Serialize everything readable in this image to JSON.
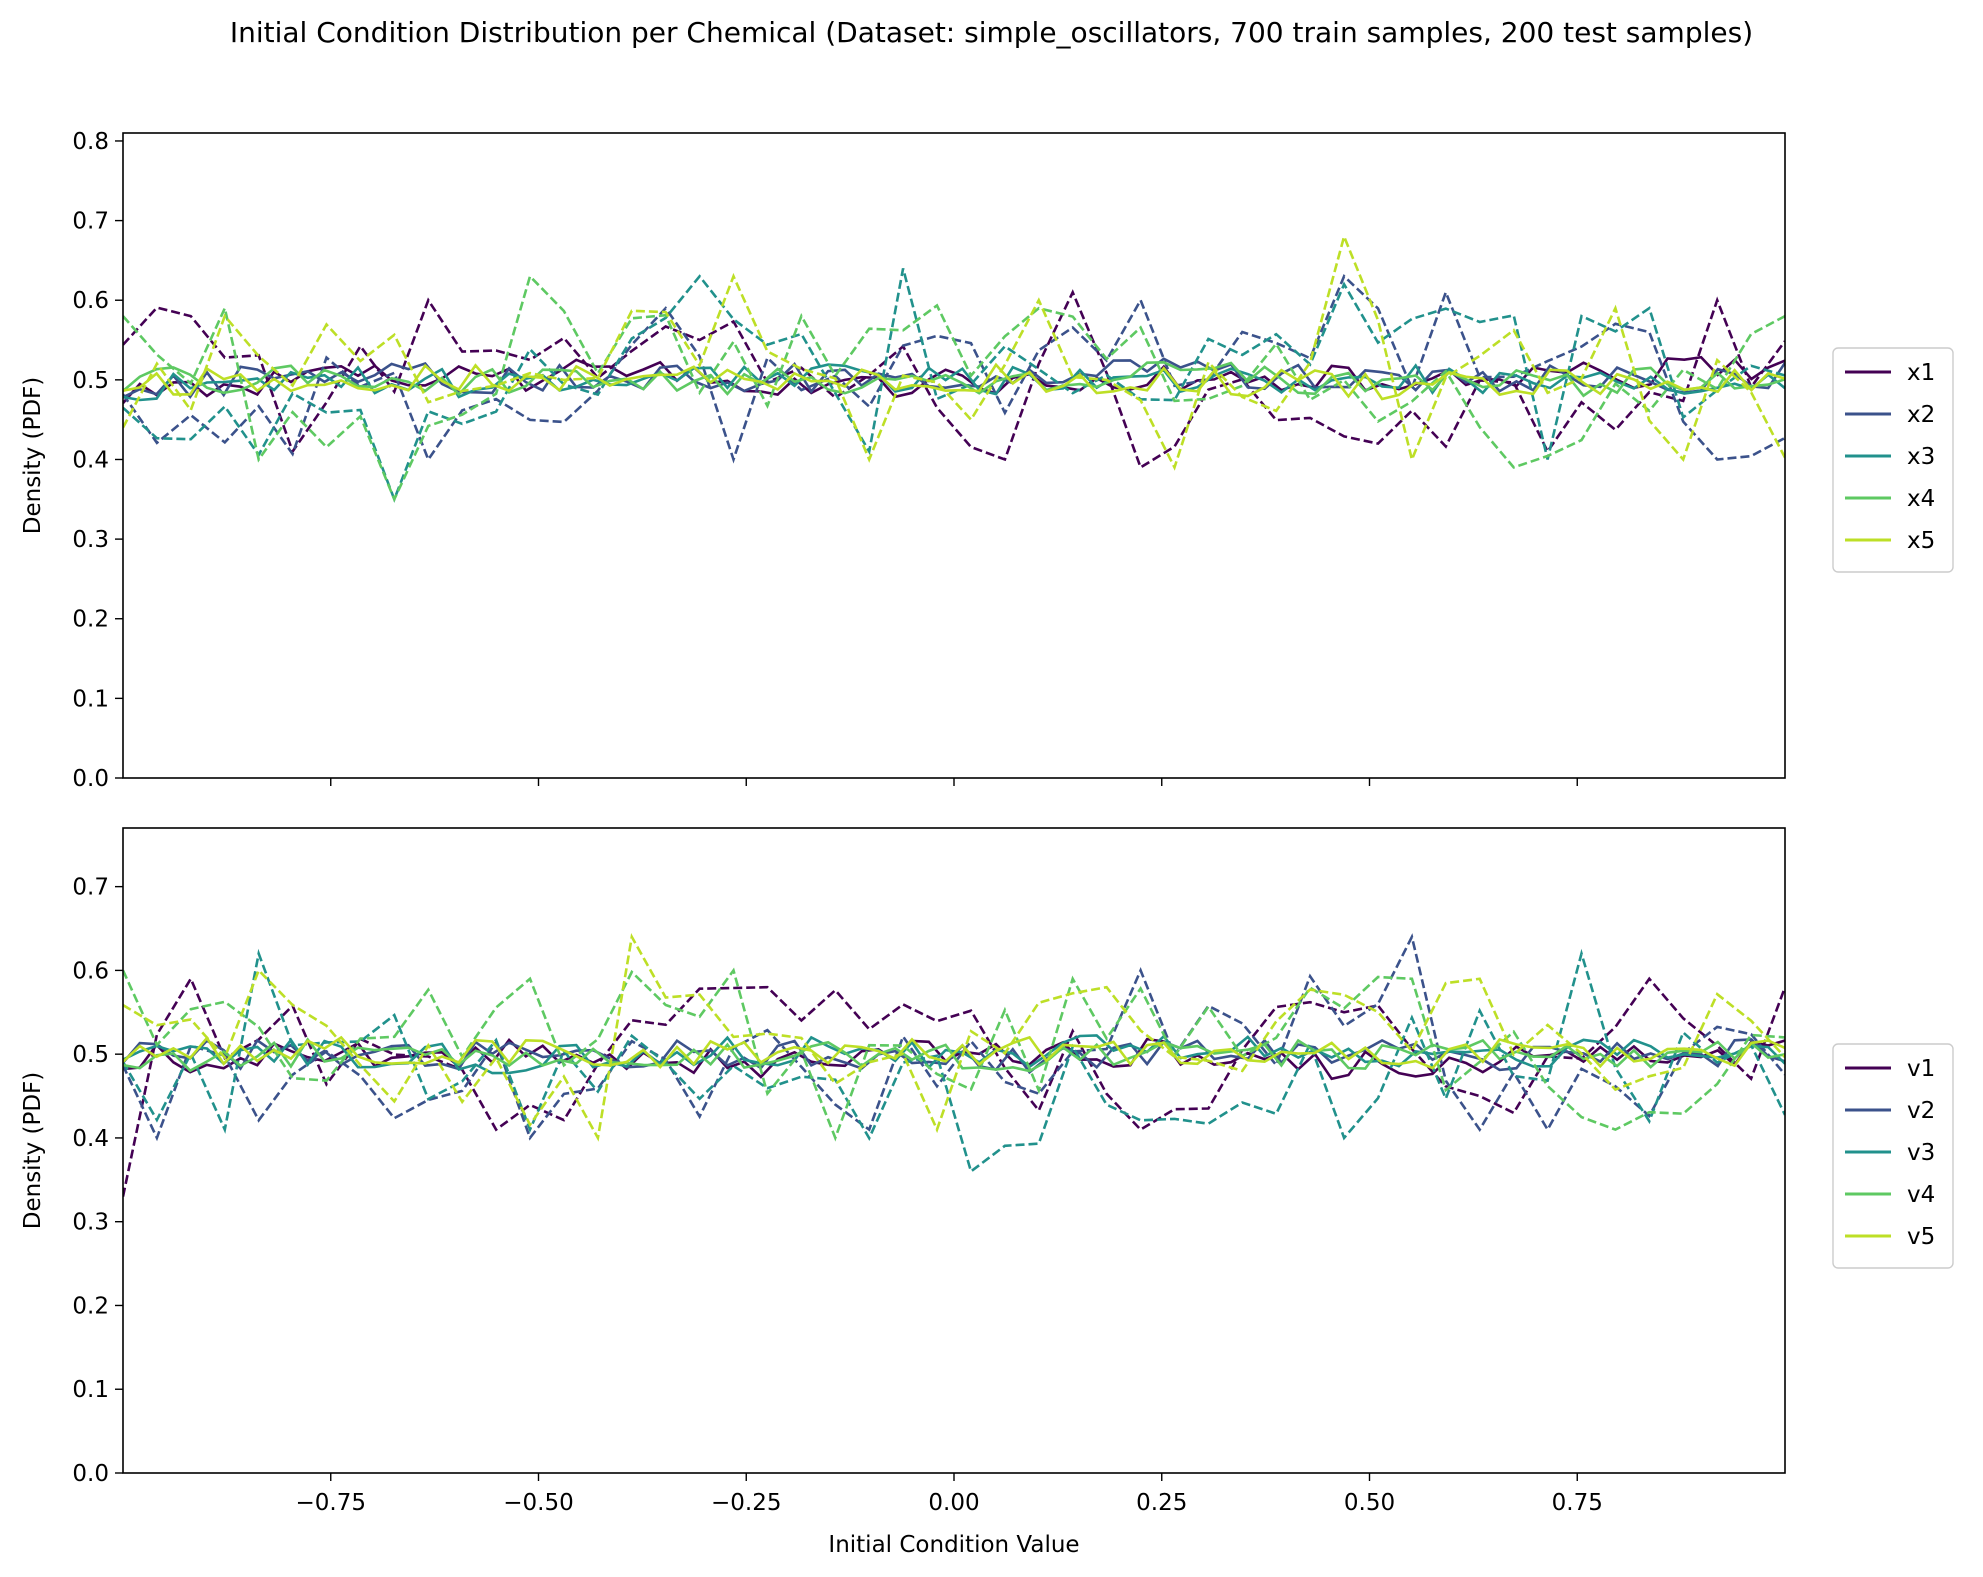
{
  "figure": {
    "title": "Initial Condition Distribution per Chemical (Dataset: simple_oscillators, 700 train samples, 200 test samples)"
  },
  "chart_data": [
    {
      "type": "line",
      "title": "",
      "xlabel": "",
      "ylabel": "Density (PDF)",
      "xlim": [
        -1.0,
        1.0
      ],
      "ylim": [
        0.0,
        0.81
      ],
      "yticks": [
        0.0,
        0.1,
        0.2,
        0.3,
        0.4,
        0.5,
        0.6,
        0.7,
        0.8
      ],
      "xticks": [
        -0.75,
        -0.5,
        -0.25,
        0.0,
        0.25,
        0.5,
        0.75
      ],
      "show_xticklabels": false,
      "grid": false,
      "legend_position": "right",
      "line_styles": {
        "train": "solid",
        "test": "dashed"
      },
      "series": [
        {
          "name": "x1",
          "color": "#440154",
          "train_anchors": [
            [
              -1.0,
              0.45
            ],
            [
              -0.8,
              0.5
            ],
            [
              -0.6,
              0.5
            ],
            [
              -0.4,
              0.53
            ],
            [
              -0.2,
              0.48
            ],
            [
              0.0,
              0.49
            ],
            [
              0.2,
              0.5
            ],
            [
              0.4,
              0.5
            ],
            [
              0.6,
              0.5
            ],
            [
              0.8,
              0.52
            ],
            [
              1.0,
              0.54
            ]
          ],
          "test_anchors": [
            [
              -0.93,
              0.58
            ],
            [
              -0.8,
              0.41
            ],
            [
              -0.64,
              0.6
            ],
            [
              -0.3,
              0.55
            ],
            [
              0.06,
              0.4
            ],
            [
              0.16,
              0.61
            ],
            [
              0.24,
              0.39
            ],
            [
              0.52,
              0.42
            ],
            [
              0.7,
              0.41
            ],
            [
              0.9,
              0.6
            ]
          ]
        },
        {
          "name": "x2",
          "color": "#3b528b",
          "train_anchors": [
            [
              -1.0,
              0.47
            ],
            [
              -0.75,
              0.52
            ],
            [
              -0.5,
              0.5
            ],
            [
              -0.25,
              0.51
            ],
            [
              0.0,
              0.5
            ],
            [
              0.25,
              0.53
            ],
            [
              0.5,
              0.5
            ],
            [
              0.75,
              0.5
            ],
            [
              1.0,
              0.51
            ]
          ],
          "test_anchors": [
            [
              -0.62,
              0.4
            ],
            [
              -0.35,
              0.59
            ],
            [
              -0.25,
              0.4
            ],
            [
              0.23,
              0.6
            ],
            [
              0.46,
              0.63
            ],
            [
              0.6,
              0.61
            ],
            [
              0.82,
              0.56
            ],
            [
              0.9,
              0.4
            ]
          ]
        },
        {
          "name": "x3",
          "color": "#21918c",
          "train_anchors": [
            [
              -1.0,
              0.47
            ],
            [
              -0.75,
              0.51
            ],
            [
              -0.5,
              0.47
            ],
            [
              -0.25,
              0.51
            ],
            [
              0.0,
              0.5
            ],
            [
              0.25,
              0.49
            ],
            [
              0.5,
              0.51
            ],
            [
              0.75,
              0.49
            ],
            [
              1.0,
              0.5
            ]
          ],
          "test_anchors": [
            [
              -0.67,
              0.35
            ],
            [
              -0.3,
              0.63
            ],
            [
              -0.05,
              0.64
            ],
            [
              -0.12,
              0.41
            ],
            [
              0.47,
              0.62
            ],
            [
              0.84,
              0.59
            ],
            [
              0.7,
              0.4
            ]
          ]
        },
        {
          "name": "x4",
          "color": "#5ec962",
          "train_anchors": [
            [
              -1.0,
              0.49
            ],
            [
              -0.8,
              0.51
            ],
            [
              -0.7,
              0.47
            ],
            [
              -0.5,
              0.51
            ],
            [
              -0.25,
              0.5
            ],
            [
              0.0,
              0.49
            ],
            [
              0.25,
              0.52
            ],
            [
              0.5,
              0.49
            ],
            [
              0.75,
              0.49
            ],
            [
              1.0,
              0.51
            ]
          ],
          "test_anchors": [
            [
              -1.0,
              0.58
            ],
            [
              -0.88,
              0.59
            ],
            [
              -0.84,
              0.4
            ],
            [
              -0.68,
              0.35
            ],
            [
              -0.49,
              0.63
            ],
            [
              -0.17,
              0.58
            ],
            [
              0.12,
              0.59
            ],
            [
              0.68,
              0.39
            ],
            [
              0.99,
              0.58
            ]
          ]
        },
        {
          "name": "x5",
          "color": "#bddf26",
          "train_anchors": [
            [
              -1.0,
              0.49
            ],
            [
              -0.75,
              0.51
            ],
            [
              -0.5,
              0.5
            ],
            [
              -0.25,
              0.5
            ],
            [
              0.0,
              0.51
            ],
            [
              0.25,
              0.5
            ],
            [
              0.5,
              0.48
            ],
            [
              0.75,
              0.5
            ],
            [
              1.0,
              0.49
            ]
          ],
          "test_anchors": [
            [
              -1.0,
              0.44
            ],
            [
              -0.87,
              0.58
            ],
            [
              -0.25,
              0.63
            ],
            [
              -0.11,
              0.4
            ],
            [
              0.1,
              0.6
            ],
            [
              0.25,
              0.39
            ],
            [
              0.48,
              0.68
            ],
            [
              0.55,
              0.4
            ],
            [
              0.78,
              0.59
            ],
            [
              0.86,
              0.4
            ]
          ]
        }
      ]
    },
    {
      "type": "line",
      "title": "",
      "xlabel": "Initial Condition Value",
      "ylabel": "Density (PDF)",
      "xlim": [
        -1.0,
        1.0
      ],
      "ylim": [
        0.0,
        0.77
      ],
      "yticks": [
        0.0,
        0.1,
        0.2,
        0.3,
        0.4,
        0.5,
        0.6,
        0.7
      ],
      "xticks": [
        -0.75,
        -0.5,
        -0.25,
        0.0,
        0.25,
        0.5,
        0.75
      ],
      "xticklabels": [
        "−0.75",
        "−0.50",
        "−0.25",
        "0.00",
        "0.25",
        "0.50",
        "0.75"
      ],
      "show_xticklabels": true,
      "grid": false,
      "legend_position": "right",
      "line_styles": {
        "train": "solid",
        "test": "dashed"
      },
      "series": [
        {
          "name": "v1",
          "color": "#440154",
          "train_anchors": [
            [
              -1.0,
              0.48
            ],
            [
              -0.75,
              0.5
            ],
            [
              -0.5,
              0.51
            ],
            [
              -0.25,
              0.47
            ],
            [
              0.0,
              0.52
            ],
            [
              0.25,
              0.5
            ],
            [
              0.5,
              0.46
            ],
            [
              0.75,
              0.5
            ],
            [
              1.0,
              0.51
            ]
          ],
          "test_anchors": [
            [
              -1.0,
              0.33
            ],
            [
              -0.92,
              0.59
            ],
            [
              -0.54,
              0.41
            ],
            [
              -0.24,
              0.58
            ],
            [
              0.24,
              0.41
            ],
            [
              0.45,
              0.55
            ],
            [
              0.62,
              0.45
            ],
            [
              0.85,
              0.59
            ],
            [
              0.99,
              0.58
            ]
          ]
        },
        {
          "name": "v2",
          "color": "#3b528b",
          "train_anchors": [
            [
              -1.0,
              0.5
            ],
            [
              -0.75,
              0.5
            ],
            [
              -0.5,
              0.49
            ],
            [
              -0.25,
              0.5
            ],
            [
              0.0,
              0.48
            ],
            [
              0.25,
              0.5
            ],
            [
              0.5,
              0.5
            ],
            [
              0.75,
              0.49
            ],
            [
              1.0,
              0.52
            ]
          ],
          "test_anchors": [
            [
              -0.94,
              0.4
            ],
            [
              -0.5,
              0.4
            ],
            [
              -0.1,
              0.41
            ],
            [
              0.23,
              0.6
            ],
            [
              0.54,
              0.64
            ],
            [
              0.64,
              0.41
            ],
            [
              0.72,
              0.41
            ]
          ]
        },
        {
          "name": "v3",
          "color": "#21918c",
          "train_anchors": [
            [
              -1.0,
              0.51
            ],
            [
              -0.75,
              0.5
            ],
            [
              -0.5,
              0.48
            ],
            [
              -0.25,
              0.51
            ],
            [
              0.0,
              0.5
            ],
            [
              0.25,
              0.52
            ],
            [
              0.5,
              0.49
            ],
            [
              0.75,
              0.5
            ],
            [
              1.0,
              0.49
            ]
          ],
          "test_anchors": [
            [
              -0.86,
              0.41
            ],
            [
              -0.82,
              0.62
            ],
            [
              -0.5,
              0.41
            ],
            [
              0.03,
              0.36
            ],
            [
              0.47,
              0.4
            ],
            [
              0.75,
              0.62
            ],
            [
              0.85,
              0.42
            ]
          ]
        },
        {
          "name": "v4",
          "color": "#5ec962",
          "train_anchors": [
            [
              -1.0,
              0.49
            ],
            [
              -0.75,
              0.5
            ],
            [
              -0.5,
              0.5
            ],
            [
              -0.25,
              0.5
            ],
            [
              0.0,
              0.49
            ],
            [
              0.25,
              0.5
            ],
            [
              0.5,
              0.5
            ],
            [
              0.75,
              0.5
            ],
            [
              1.0,
              0.5
            ]
          ],
          "test_anchors": [
            [
              -1.0,
              0.6
            ],
            [
              -0.52,
              0.59
            ],
            [
              -0.26,
              0.6
            ],
            [
              -0.14,
              0.4
            ],
            [
              0.15,
              0.59
            ],
            [
              0.55,
              0.59
            ],
            [
              0.8,
              0.41
            ],
            [
              0.99,
              0.52
            ]
          ]
        },
        {
          "name": "v5",
          "color": "#bddf26",
          "train_anchors": [
            [
              -1.0,
              0.5
            ],
            [
              -0.75,
              0.51
            ],
            [
              -0.5,
              0.5
            ],
            [
              -0.25,
              0.5
            ],
            [
              0.0,
              0.51
            ],
            [
              0.25,
              0.5
            ],
            [
              0.5,
              0.5
            ],
            [
              0.75,
              0.5
            ],
            [
              1.0,
              0.5
            ]
          ],
          "test_anchors": [
            [
              -0.84,
              0.6
            ],
            [
              -0.44,
              0.4
            ],
            [
              -0.37,
              0.64
            ],
            [
              0.0,
              0.41
            ],
            [
              0.2,
              0.58
            ],
            [
              0.64,
              0.59
            ],
            [
              0.95,
              0.54
            ]
          ]
        }
      ]
    }
  ]
}
